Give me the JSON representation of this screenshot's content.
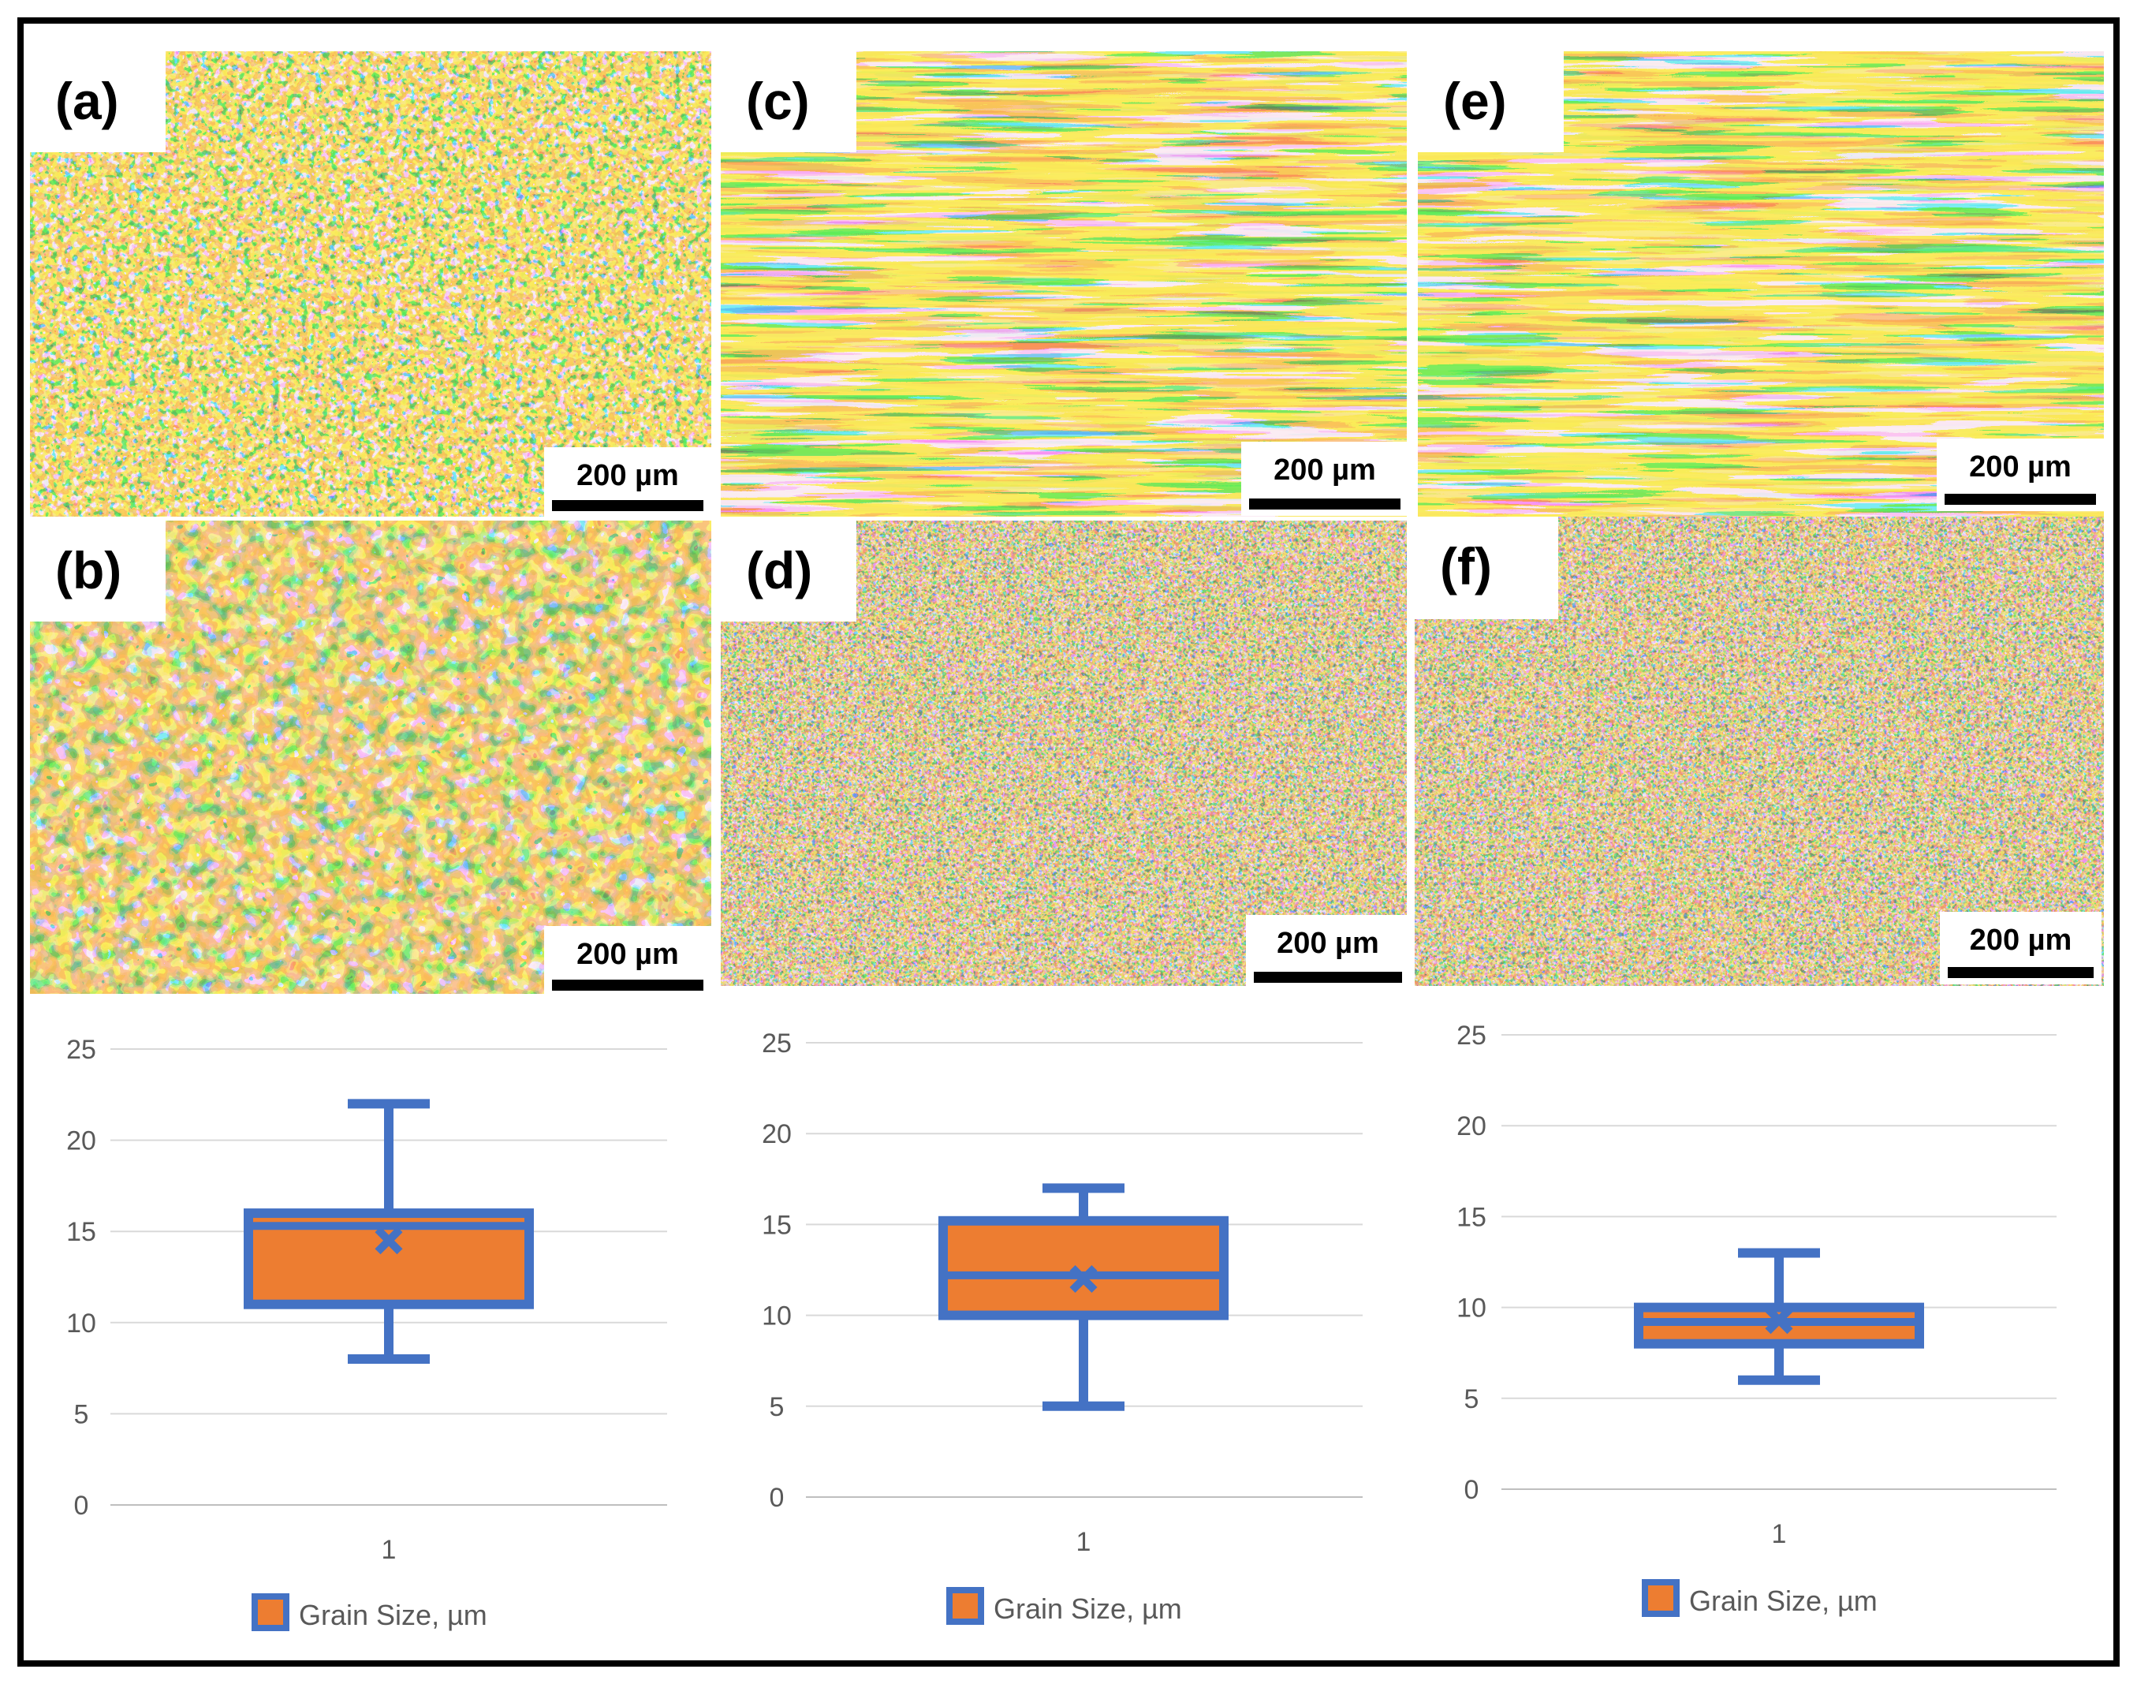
{
  "figure": {
    "micrographs": [
      {
        "label": "(a)",
        "scale_text": "200 µm",
        "texture": "equiaxed-fine"
      },
      {
        "label": "(b)",
        "scale_text": "200 µm",
        "texture": "equiaxed-coarse"
      },
      {
        "label": "(c)",
        "scale_text": "200 µm",
        "texture": "elongated-banded"
      },
      {
        "label": "(d)",
        "scale_text": "200 µm",
        "texture": "equiaxed-very-fine"
      },
      {
        "label": "(e)",
        "scale_text": "200 µm",
        "texture": "elongated-banded"
      },
      {
        "label": "(f)",
        "scale_text": "200 µm",
        "texture": "equiaxed-very-fine"
      }
    ],
    "colors": {
      "yellow": "#f4d21c",
      "blue": "#1d4fd8",
      "light_blue": "#3aa6ee",
      "orange": "#d98a2e",
      "dark": "#2a2540",
      "box_fill": "#ed7d31",
      "box_stroke": "#4472c4",
      "grid": "#d9d9d9",
      "axis_text": "#595959"
    }
  },
  "chart_data": [
    {
      "type": "box",
      "categories": [
        "1"
      ],
      "series": [
        {
          "name": "Grain Size, µm",
          "min": 8,
          "q1": 11,
          "median": 15.3,
          "q3": 16,
          "max": 22,
          "mean": 14.5
        }
      ],
      "ylim": [
        0,
        25
      ],
      "yticks": [
        "0",
        "5",
        "10",
        "15",
        "20",
        "25"
      ],
      "legend": "Grain Size, µm",
      "legend_position": "bottom"
    },
    {
      "type": "box",
      "categories": [
        "1"
      ],
      "series": [
        {
          "name": "Grain Size, µm",
          "min": 5,
          "q1": 10,
          "median": 12.2,
          "q3": 15.2,
          "max": 17,
          "mean": 12
        }
      ],
      "ylim": [
        0,
        25
      ],
      "yticks": [
        "0",
        "5",
        "10",
        "15",
        "20",
        "25"
      ],
      "legend": "Grain Size, µm",
      "legend_position": "bottom"
    },
    {
      "type": "box",
      "categories": [
        "1"
      ],
      "series": [
        {
          "name": "Grain Size, µm",
          "min": 6,
          "q1": 8,
          "median": 9.2,
          "q3": 10,
          "max": 13,
          "mean": 9.3
        }
      ],
      "ylim": [
        0,
        25
      ],
      "yticks": [
        "0",
        "5",
        "10",
        "15",
        "20",
        "25"
      ],
      "legend": "Grain Size, µm",
      "legend_position": "bottom"
    }
  ]
}
